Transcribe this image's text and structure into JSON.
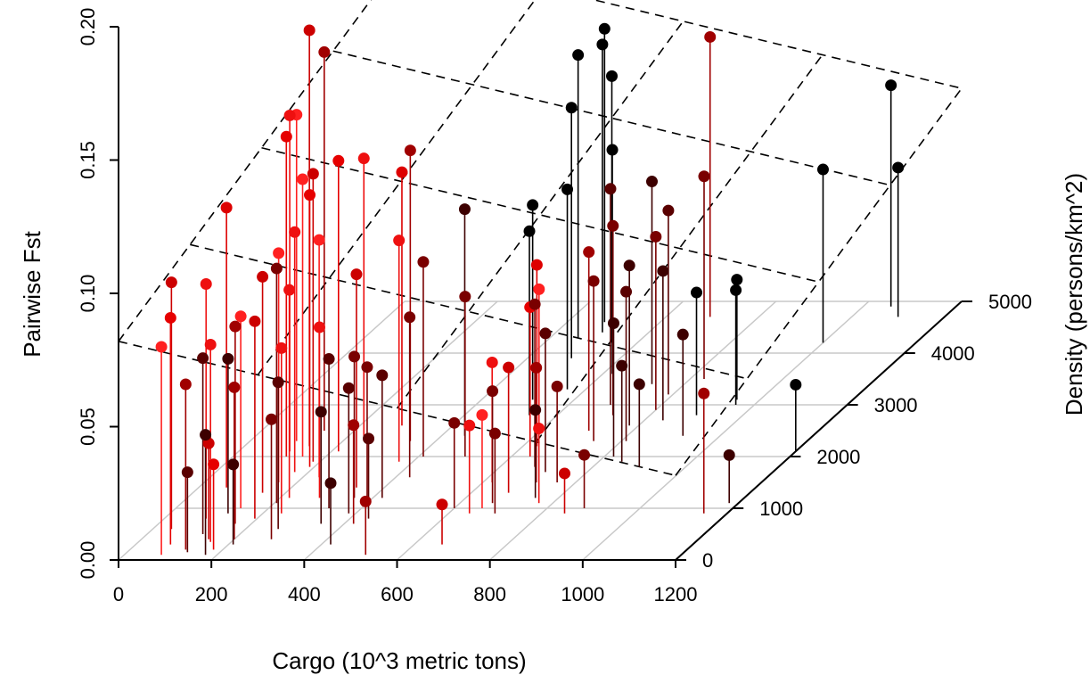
{
  "chart_data": {
    "type": "scatter3d",
    "title": "",
    "xlabel": "Cargo (10^3 metric tons)",
    "ylabel": "Density (persons/km^2)",
    "zlabel": "Pairwise Fst",
    "xlim": [
      0,
      1200
    ],
    "ylim": [
      0,
      5000
    ],
    "zlim": [
      0,
      0.2
    ],
    "x_ticks": [
      "0",
      "200",
      "400",
      "600",
      "800",
      "1000",
      "1200"
    ],
    "y_ticks": [
      "0",
      "1000",
      "2000",
      "3000",
      "4000",
      "5000"
    ],
    "z_ticks": [
      "0.00",
      "0.05",
      "0.10",
      "0.15",
      "0.20"
    ],
    "regression_plane": {
      "z_at_x0_y0": 0.082,
      "z_at_x1200_y0": 0.0317,
      "z_at_x0_y5000": 0.1302
    },
    "grid": true,
    "points": [
      {
        "x": 40,
        "y": 600,
        "z": 0.0925,
        "color": "#cc0000"
      },
      {
        "x": 60,
        "y": 1400,
        "z": 0.105,
        "color": "#dd0000"
      },
      {
        "x": 75,
        "y": 300,
        "z": 0.085,
        "color": "#e60000"
      },
      {
        "x": 80,
        "y": 100,
        "z": 0.078,
        "color": "#ff2020"
      },
      {
        "x": 90,
        "y": 800,
        "z": 0.088,
        "color": "#ee1010"
      },
      {
        "x": 100,
        "y": 2300,
        "z": 0.1224,
        "color": "#ff2020"
      },
      {
        "x": 110,
        "y": 2100,
        "z": 0.126,
        "color": "#ee1010"
      },
      {
        "x": 115,
        "y": 2000,
        "z": 0.12,
        "color": "#e60000"
      },
      {
        "x": 120,
        "y": 500,
        "z": 0.066,
        "color": "#5a0000"
      },
      {
        "x": 120,
        "y": 200,
        "z": 0.062,
        "color": "#a00000"
      },
      {
        "x": 125,
        "y": 900,
        "z": 0.058,
        "color": "#3d0000"
      },
      {
        "x": 130,
        "y": 150,
        "z": 0.03,
        "color": "#5a0000"
      },
      {
        "x": 135,
        "y": 2500,
        "z": 0.142,
        "color": "#a00000"
      },
      {
        "x": 140,
        "y": 2200,
        "z": 0.156,
        "color": "#cc0000"
      },
      {
        "x": 140,
        "y": 1000,
        "z": 0.072,
        "color": "#ff2020"
      },
      {
        "x": 145,
        "y": 400,
        "z": 0.036,
        "color": "#cc0000"
      },
      {
        "x": 150,
        "y": 1300,
        "z": 0.081,
        "color": "#cc0000"
      },
      {
        "x": 150,
        "y": 2000,
        "z": 0.104,
        "color": "#ff2020"
      },
      {
        "x": 155,
        "y": 350,
        "z": 0.074,
        "color": "#ee1010"
      },
      {
        "x": 160,
        "y": 1500,
        "z": 0.086,
        "color": "#ff2020"
      },
      {
        "x": 165,
        "y": 700,
        "z": 0.074,
        "color": "#a00000"
      },
      {
        "x": 170,
        "y": 1700,
        "z": 0.09,
        "color": "#ee1010"
      },
      {
        "x": 175,
        "y": 100,
        "z": 0.045,
        "color": "#3d0000"
      },
      {
        "x": 180,
        "y": 200,
        "z": 0.032,
        "color": "#e60000"
      },
      {
        "x": 185,
        "y": 1900,
        "z": 0.108,
        "color": "#cc0000"
      },
      {
        "x": 190,
        "y": 1800,
        "z": 0.102,
        "color": "#e60000"
      },
      {
        "x": 195,
        "y": 800,
        "z": 0.074,
        "color": "#cc0000"
      },
      {
        "x": 200,
        "y": 400,
        "z": 0.057,
        "color": "#a00000"
      },
      {
        "x": 205,
        "y": 1100,
        "z": 0.088,
        "color": "#7a0000"
      },
      {
        "x": 210,
        "y": 300,
        "z": 0.03,
        "color": "#3d0000"
      },
      {
        "x": 215,
        "y": 2100,
        "z": 0.109,
        "color": "#e60000"
      },
      {
        "x": 220,
        "y": 1200,
        "z": 0.078,
        "color": "#ee1010"
      },
      {
        "x": 235,
        "y": 1600,
        "z": 0.089,
        "color": "#ff2020"
      },
      {
        "x": 240,
        "y": 900,
        "z": 0.062,
        "color": "#ee1010"
      },
      {
        "x": 245,
        "y": 2300,
        "z": 0.106,
        "color": "#ee1010"
      },
      {
        "x": 270,
        "y": 600,
        "z": 0.055,
        "color": "#5a0000"
      },
      {
        "x": 280,
        "y": 400,
        "z": 0.045,
        "color": "#7a0000"
      },
      {
        "x": 285,
        "y": 1200,
        "z": 0.064,
        "color": "#ee1010"
      },
      {
        "x": 290,
        "y": 2600,
        "z": 0.095,
        "color": "#dd0000"
      },
      {
        "x": 330,
        "y": 1000,
        "z": 0.056,
        "color": "#5a0000"
      },
      {
        "x": 340,
        "y": 1400,
        "z": 0.08,
        "color": "#cc0000"
      },
      {
        "x": 345,
        "y": 2300,
        "z": 0.109,
        "color": "#a00000"
      },
      {
        "x": 350,
        "y": 700,
        "z": 0.042,
        "color": "#3d0000"
      },
      {
        "x": 360,
        "y": 1200,
        "z": 0.053,
        "color": "#7a0000"
      },
      {
        "x": 370,
        "y": 1900,
        "z": 0.083,
        "color": "#ee1010"
      },
      {
        "x": 385,
        "y": 900,
        "z": 0.047,
        "color": "#5a0000"
      },
      {
        "x": 400,
        "y": 1100,
        "z": 0.051,
        "color": "#7a0000"
      },
      {
        "x": 410,
        "y": 2000,
        "z": 0.073,
        "color": "#7a0000"
      },
      {
        "x": 420,
        "y": 300,
        "z": 0.023,
        "color": "#3d0000"
      },
      {
        "x": 420,
        "y": 700,
        "z": 0.037,
        "color": "#a00000"
      },
      {
        "x": 420,
        "y": 1200,
        "z": 0.046,
        "color": "#5a0000"
      },
      {
        "x": 430,
        "y": 1600,
        "z": 0.06,
        "color": "#7a0000"
      },
      {
        "x": 440,
        "y": 800,
        "z": 0.03,
        "color": "#5a0000"
      },
      {
        "x": 450,
        "y": 2400,
        "z": 0.085,
        "color": "#3d0000"
      },
      {
        "x": 460,
        "y": 4300,
        "z": 0.106,
        "color": "#000000"
      },
      {
        "x": 480,
        "y": 4600,
        "z": 0.11,
        "color": "#000000"
      },
      {
        "x": 495,
        "y": 3900,
        "z": 0.094,
        "color": "#000000"
      },
      {
        "x": 500,
        "y": 4400,
        "z": 0.108,
        "color": "#000000"
      },
      {
        "x": 500,
        "y": 2000,
        "z": 0.06,
        "color": "#7a0000"
      },
      {
        "x": 510,
        "y": 3100,
        "z": 0.073,
        "color": "#000000"
      },
      {
        "x": 520,
        "y": 100,
        "z": 0.02,
        "color": "#a00000"
      },
      {
        "x": 540,
        "y": 2800,
        "z": 0.069,
        "color": "#000000"
      },
      {
        "x": 545,
        "y": 4200,
        "z": 0.1,
        "color": "#000000"
      },
      {
        "x": 560,
        "y": 3300,
        "z": 0.075,
        "color": "#000000"
      },
      {
        "x": 600,
        "y": 1000,
        "z": 0.032,
        "color": "#7a0000"
      },
      {
        "x": 610,
        "y": 2400,
        "z": 0.055,
        "color": "#ff2020"
      },
      {
        "x": 620,
        "y": 3600,
        "z": 0.084,
        "color": "#000000"
      },
      {
        "x": 620,
        "y": 1500,
        "z": 0.045,
        "color": "#ee1010"
      },
      {
        "x": 630,
        "y": 2200,
        "z": 0.068,
        "color": "#dd0000"
      },
      {
        "x": 640,
        "y": 2000,
        "z": 0.056,
        "color": "#e60000"
      },
      {
        "x": 645,
        "y": 900,
        "z": 0.033,
        "color": "#ee1010"
      },
      {
        "x": 660,
        "y": 1000,
        "z": 0.035,
        "color": "#ff2020"
      },
      {
        "x": 660,
        "y": 300,
        "z": 0.015,
        "color": "#cc0000"
      },
      {
        "x": 670,
        "y": 1100,
        "z": 0.042,
        "color": "#7a0000"
      },
      {
        "x": 675,
        "y": 1800,
        "z": 0.061,
        "color": "#7a0000"
      },
      {
        "x": 680,
        "y": 1300,
        "z": 0.047,
        "color": "#cc0000"
      },
      {
        "x": 690,
        "y": 3000,
        "z": 0.081,
        "color": "#5a0000"
      },
      {
        "x": 695,
        "y": 4700,
        "z": 0.105,
        "color": "#a00000"
      },
      {
        "x": 700,
        "y": 900,
        "z": 0.03,
        "color": "#7a0000"
      },
      {
        "x": 705,
        "y": 2500,
        "z": 0.067,
        "color": "#a00000"
      },
      {
        "x": 710,
        "y": 1700,
        "z": 0.052,
        "color": "#5a0000"
      },
      {
        "x": 715,
        "y": 1500,
        "z": 0.043,
        "color": "#a00000"
      },
      {
        "x": 720,
        "y": 2800,
        "z": 0.071,
        "color": "#7a0000"
      },
      {
        "x": 730,
        "y": 3400,
        "z": 0.076,
        "color": "#3d0000"
      },
      {
        "x": 740,
        "y": 2300,
        "z": 0.06,
        "color": "#7a0000"
      },
      {
        "x": 750,
        "y": 1200,
        "z": 0.033,
        "color": "#3d0000"
      },
      {
        "x": 760,
        "y": 1500,
        "z": 0.036,
        "color": "#7a0000"
      },
      {
        "x": 770,
        "y": 1100,
        "z": 0.028,
        "color": "#ee1010"
      },
      {
        "x": 780,
        "y": 2600,
        "z": 0.06,
        "color": "#3d0000"
      },
      {
        "x": 790,
        "y": 3200,
        "z": 0.069,
        "color": "#5a0000"
      },
      {
        "x": 800,
        "y": 2900,
        "z": 0.065,
        "color": "#7a0000"
      },
      {
        "x": 810,
        "y": 2300,
        "z": 0.056,
        "color": "#5a0000"
      },
      {
        "x": 820,
        "y": 2000,
        "z": 0.05,
        "color": "#3d0000"
      },
      {
        "x": 830,
        "y": 3500,
        "z": 0.076,
        "color": "#7a0000"
      },
      {
        "x": 840,
        "y": 2700,
        "z": 0.056,
        "color": "#3d0000"
      },
      {
        "x": 850,
        "y": 1900,
        "z": 0.036,
        "color": "#3d0000"
      },
      {
        "x": 850,
        "y": 900,
        "z": 0.015,
        "color": "#cc0000"
      },
      {
        "x": 880,
        "y": 1000,
        "z": 0.02,
        "color": "#7a0000"
      },
      {
        "x": 900,
        "y": 1800,
        "z": 0.031,
        "color": "#3d0000"
      },
      {
        "x": 900,
        "y": 2800,
        "z": 0.046,
        "color": "#000000"
      },
      {
        "x": 920,
        "y": 2400,
        "z": 0.038,
        "color": "#3d0000"
      },
      {
        "x": 950,
        "y": 3100,
        "z": 0.045,
        "color": "#000000"
      },
      {
        "x": 960,
        "y": 3000,
        "z": 0.043,
        "color": "#000000"
      },
      {
        "x": 1000,
        "y": 4200,
        "z": 0.065,
        "color": "#000000"
      },
      {
        "x": 1060,
        "y": 4900,
        "z": 0.083,
        "color": "#000000"
      },
      {
        "x": 1100,
        "y": 4700,
        "z": 0.056,
        "color": "#000000"
      },
      {
        "x": 1150,
        "y": 900,
        "z": 0.045,
        "color": "#a00000"
      },
      {
        "x": 1180,
        "y": 1100,
        "z": 0.018,
        "color": "#3d0000"
      },
      {
        "x": 1200,
        "y": 2100,
        "z": 0.025,
        "color": "#000000"
      }
    ]
  }
}
